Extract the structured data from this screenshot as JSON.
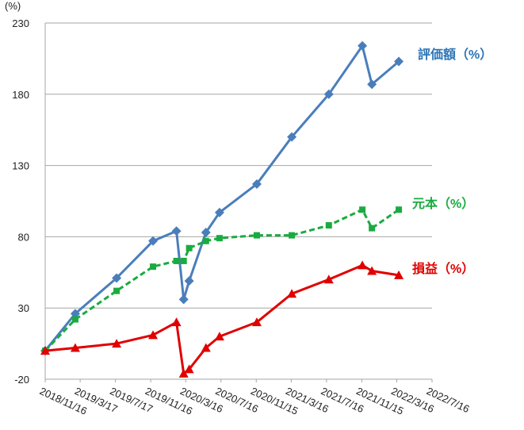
{
  "chart_data": {
    "type": "line",
    "y_unit": "(%)",
    "x": [
      "2018/11/16",
      "2019/2/28",
      "2019/7/21",
      "2019/11/24",
      "2020/2/13",
      "2020/3/9",
      "2020/3/28",
      "2020/5/25",
      "2020/7/11",
      "2020/11/17",
      "2021/3/18",
      "2021/7/24",
      "2021/11/17",
      "2021/12/20",
      "2022/3/23"
    ],
    "xlim": [
      "2018/11/16",
      "2022/7/16"
    ],
    "xticks": [
      "2018/11/16",
      "2019/3/17",
      "2019/7/17",
      "2019/11/16",
      "2020/3/16",
      "2020/7/16",
      "2020/11/15",
      "2021/3/16",
      "2021/7/16",
      "2021/11/15",
      "2022/3/16",
      "2022/7/16"
    ],
    "ylim": [
      -20,
      230
    ],
    "yticks": [
      -20,
      30,
      80,
      130,
      180,
      230
    ],
    "grid": true,
    "series": [
      {
        "name": "評価額（%）",
        "color": "#4a7ebb",
        "label_color": "#2e75b6",
        "marker": "diamond",
        "dash": false,
        "values": [
          0,
          26,
          51,
          77,
          84,
          36,
          49,
          83,
          97,
          117,
          150,
          180,
          214,
          187,
          203
        ]
      },
      {
        "name": "元本（%）",
        "color": "#1aab40",
        "label_color": "#1aab40",
        "marker": "square",
        "dash": true,
        "values": [
          0,
          22,
          42,
          59,
          63,
          63,
          72,
          77,
          79,
          81,
          81,
          88,
          99,
          86,
          99
        ]
      },
      {
        "name": "損益（%）",
        "color": "#e00000",
        "label_color": "#e00000",
        "marker": "triangle",
        "dash": false,
        "values": [
          0,
          2,
          5,
          11,
          20,
          -16,
          -13,
          2,
          10,
          20,
          40,
          50,
          60,
          56,
          53
        ]
      }
    ]
  }
}
